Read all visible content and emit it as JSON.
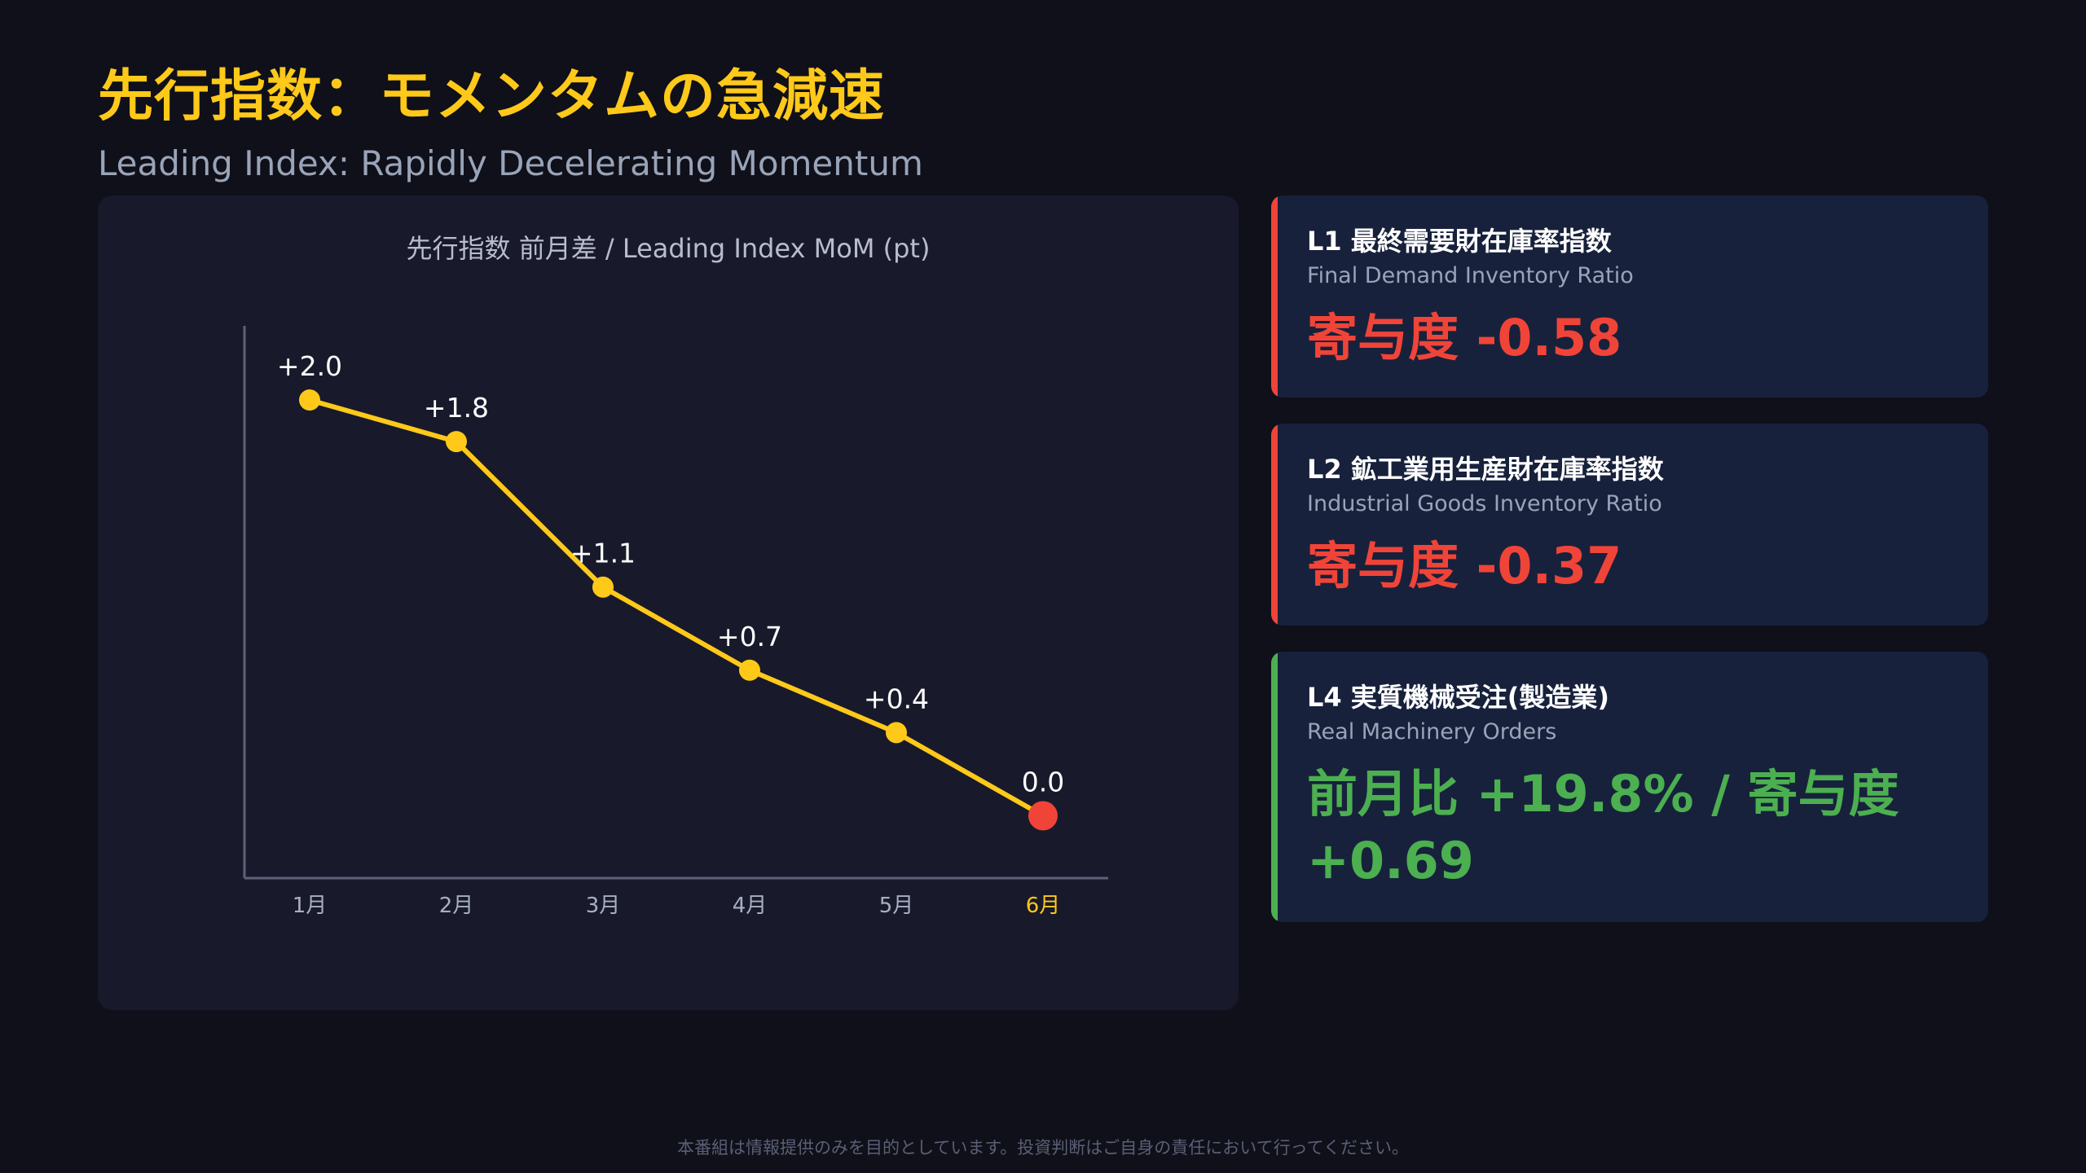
{
  "header": {
    "title": "先行指数：モメンタムの急減速",
    "subtitle": "Leading Index: Rapidly Decelerating Momentum"
  },
  "chart_data": {
    "type": "line",
    "title": "先行指数 前月差 / Leading Index MoM (pt)",
    "categories": [
      "1月",
      "2月",
      "3月",
      "4月",
      "5月",
      "6月"
    ],
    "values": [
      2.0,
      1.8,
      1.1,
      0.7,
      0.4,
      0.0
    ],
    "data_labels": [
      "+2.0",
      "+1.8",
      "+1.1",
      "+0.7",
      "+0.4",
      "0.0"
    ],
    "highlight_index": 5,
    "xlabel": "",
    "ylabel": "",
    "ylim": [
      -0.3,
      2.2
    ],
    "grid": false,
    "colors": {
      "line": "#ffc91a",
      "highlight": "#f04438",
      "axis": "#5e6279",
      "tick": "#a9afc2",
      "highlight_tick": "#ffc91a",
      "label": "#ffffff",
      "title": "#b8bdcd"
    }
  },
  "cards": [
    {
      "title": "L1 最終需要財在庫率指数",
      "subtitle": "Final Demand Inventory Ratio",
      "value": "寄与度 -0.58",
      "tone": "negative",
      "accent": "#f04438"
    },
    {
      "title": "L2 鉱工業用生産財在庫率指数",
      "subtitle": "Industrial Goods Inventory Ratio",
      "value": "寄与度 -0.37",
      "tone": "negative",
      "accent": "#f04438"
    },
    {
      "title": "L4 実質機械受注(製造業)",
      "subtitle": "Real Machinery Orders",
      "value": "前月比 +19.8% / 寄与度 +0.69",
      "tone": "positive",
      "accent": "#4caf50"
    }
  ],
  "footer": {
    "disclaimer": "本番組は情報提供のみを目的としています。投資判断はご自身の責任において行ってください。"
  }
}
